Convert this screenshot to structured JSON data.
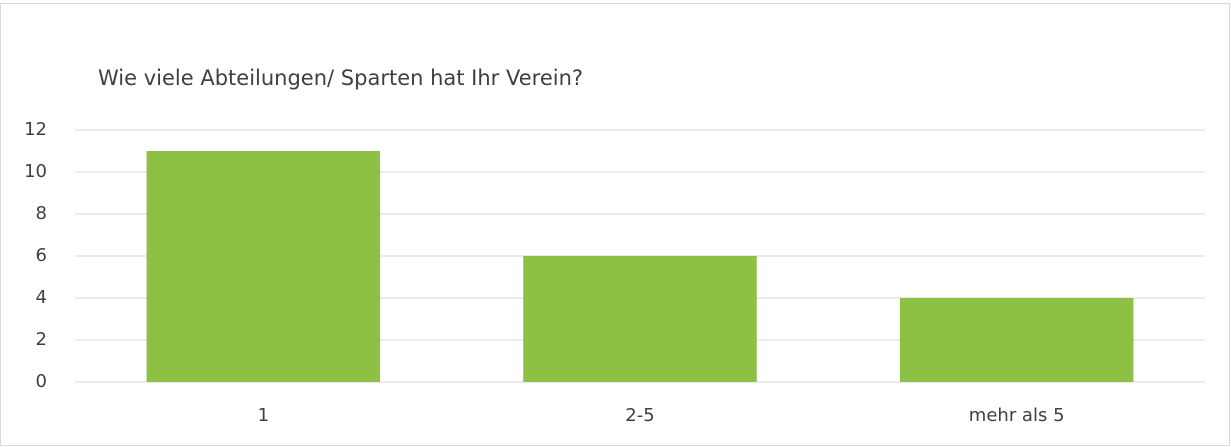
{
  "chart_data": {
    "type": "bar",
    "title": "Wie viele Abteilungen/ Sparten hat Ihr Verein?",
    "categories": [
      "1",
      "2-5",
      "mehr als 5"
    ],
    "values": [
      11,
      6,
      4
    ],
    "color": "#8dc044",
    "ylim": [
      0,
      12
    ],
    "yticks": [
      0,
      2,
      4,
      6,
      8,
      10,
      12
    ],
    "grid": true
  }
}
